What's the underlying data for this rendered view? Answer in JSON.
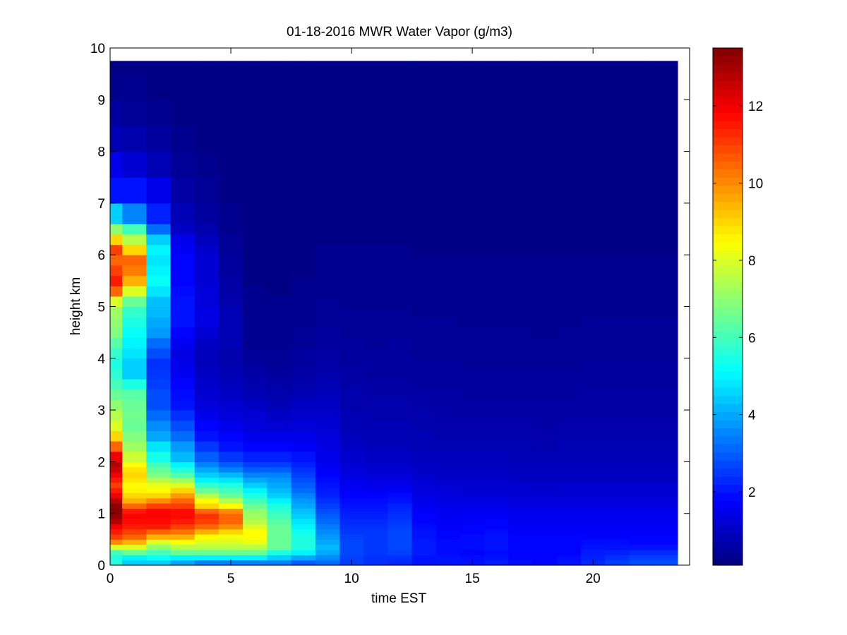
{
  "chart_data": {
    "type": "heatmap",
    "title": "01-18-2016 MWR Water Vapor (g/m3)",
    "xlabel": "time EST",
    "ylabel": "height km",
    "xlim": [
      0,
      24
    ],
    "ylim": [
      0,
      10
    ],
    "x_ticks": [
      0,
      5,
      10,
      15,
      20
    ],
    "y_ticks": [
      0,
      1,
      2,
      3,
      4,
      5,
      6,
      7,
      8,
      9,
      10
    ],
    "colormap": "jet",
    "colorbar": {
      "range": [
        0.1,
        13.5
      ],
      "ticks": [
        2,
        4,
        6,
        8,
        10,
        12
      ]
    },
    "grid": false,
    "x_centers": [
      0,
      1,
      2,
      3,
      4,
      5,
      6,
      7,
      8,
      9,
      10,
      11,
      12,
      13,
      14,
      15,
      16,
      17,
      18,
      19,
      20,
      21,
      22,
      23
    ],
    "y_centers": [
      0.05,
      0.15,
      0.25,
      0.35,
      0.45,
      0.55,
      0.65,
      0.75,
      0.85,
      0.95,
      1.05,
      1.15,
      1.25,
      1.35,
      1.45,
      1.55,
      1.65,
      1.75,
      1.85,
      1.95,
      2.1,
      2.3,
      2.5,
      2.7,
      2.9,
      3.1,
      3.3,
      3.5,
      3.7,
      3.9,
      4.1,
      4.3,
      4.5,
      4.7,
      4.9,
      5.1,
      5.3,
      5.5,
      5.7,
      5.9,
      6.1,
      6.3,
      6.5,
      6.75,
      7.25,
      7.75,
      8.25,
      8.75,
      9.25,
      9.75
    ],
    "y_edges": [
      0,
      0.1,
      0.2,
      0.3,
      0.4,
      0.5,
      0.6,
      0.7,
      0.8,
      0.9,
      1.0,
      1.1,
      1.2,
      1.3,
      1.4,
      1.5,
      1.6,
      1.7,
      1.8,
      1.9,
      2.0,
      2.2,
      2.4,
      2.6,
      2.8,
      3.0,
      3.2,
      3.4,
      3.6,
      3.8,
      4.0,
      4.2,
      4.4,
      4.6,
      4.8,
      5.0,
      5.2,
      5.4,
      5.6,
      5.8,
      6.0,
      6.2,
      6.4,
      6.6,
      7.0,
      7.5,
      8.0,
      8.5,
      9.0,
      9.5,
      9.75
    ],
    "z_by_time": [
      [
        5.6,
        5.5,
        6.0,
        8.0,
        10.0,
        11.0,
        11.5,
        12.0,
        12.8,
        13.2,
        13.4,
        13.3,
        12.8,
        12.0,
        11.5,
        11.0,
        11.5,
        12.0,
        12.5,
        12.8,
        12.0,
        10.5,
        9.0,
        8.0,
        7.5,
        7.0,
        6.5,
        6.0,
        5.7,
        5.5,
        5.8,
        6.3,
        6.8,
        7.0,
        7.2,
        8.0,
        10.5,
        11.5,
        11.0,
        10.5,
        11.0,
        9.0,
        7.0,
        4.5,
        2.0,
        1.5,
        0.8,
        0.5,
        0.3,
        0.2
      ],
      [
        4.5,
        5.0,
        6.5,
        8.0,
        9.5,
        10.5,
        11.0,
        11.5,
        11.7,
        11.8,
        11.5,
        10.5,
        9.5,
        9.0,
        8.6,
        8.5,
        8.8,
        9.0,
        8.8,
        8.4,
        7.8,
        7.2,
        6.8,
        6.5,
        6.6,
        6.5,
        6.3,
        5.5,
        4.5,
        4.5,
        4.8,
        5.0,
        5.2,
        5.5,
        5.8,
        6.5,
        8.0,
        9.5,
        10.2,
        10.5,
        9.0,
        7.5,
        6.0,
        3.5,
        2.0,
        1.2,
        0.7,
        0.4,
        0.3,
        0.2
      ],
      [
        4.5,
        5.2,
        6.0,
        7.0,
        8.0,
        9.5,
        10.5,
        11.5,
        11.7,
        11.8,
        11.8,
        11.0,
        10.0,
        9.0,
        8.5,
        8.2,
        7.5,
        6.8,
        6.4,
        6.0,
        5.4,
        4.8,
        4.0,
        3.6,
        3.2,
        2.8,
        2.8,
        2.6,
        2.5,
        2.4,
        2.8,
        3.2,
        3.8,
        4.0,
        4.2,
        4.3,
        4.8,
        5.2,
        5.0,
        4.8,
        5.0,
        4.5,
        3.2,
        2.2,
        1.5,
        0.8,
        0.5,
        0.3,
        0.2,
        0.2
      ],
      [
        4.0,
        5.0,
        6.5,
        7.5,
        8.5,
        9.5,
        10.3,
        11.0,
        11.5,
        11.7,
        11.7,
        11.0,
        10.5,
        9.8,
        9.0,
        8.0,
        7.2,
        6.2,
        5.5,
        5.0,
        4.2,
        3.8,
        3.2,
        2.8,
        2.4,
        2.0,
        1.9,
        1.8,
        1.6,
        1.5,
        1.4,
        1.6,
        1.8,
        2.0,
        2.0,
        2.0,
        1.9,
        1.8,
        1.8,
        1.8,
        1.7,
        1.5,
        1.0,
        0.8,
        0.6,
        0.4,
        0.3,
        0.2,
        0.2,
        0.2
      ],
      [
        3.5,
        5.0,
        6.5,
        7.5,
        8.0,
        8.5,
        9.5,
        10.5,
        11.0,
        11.2,
        10.5,
        9.0,
        8.5,
        7.5,
        6.5,
        5.8,
        5.0,
        4.5,
        4.0,
        3.5,
        3.0,
        2.5,
        2.0,
        1.8,
        1.5,
        1.3,
        1.2,
        1.1,
        1.0,
        0.9,
        0.9,
        1.0,
        1.2,
        1.4,
        1.4,
        1.3,
        1.3,
        1.2,
        1.2,
        1.2,
        1.1,
        0.9,
        0.7,
        0.5,
        0.4,
        0.3,
        0.2,
        0.2,
        0.2,
        0.2
      ],
      [
        3.5,
        5.0,
        6.5,
        7.5,
        8.0,
        8.3,
        9.0,
        10.0,
        10.5,
        10.5,
        10.0,
        8.5,
        7.5,
        6.5,
        6.0,
        5.5,
        4.8,
        4.2,
        3.5,
        3.0,
        2.5,
        2.0,
        1.8,
        1.5,
        1.3,
        1.2,
        1.0,
        0.9,
        0.8,
        0.7,
        0.7,
        0.8,
        0.8,
        0.8,
        0.8,
        0.7,
        0.6,
        0.6,
        0.5,
        0.5,
        0.4,
        0.4,
        0.3,
        0.3,
        0.2,
        0.2,
        0.2,
        0.2,
        0.2,
        0.2
      ],
      [
        3.5,
        5.0,
        6.5,
        7.5,
        8.2,
        8.5,
        8.5,
        8.0,
        7.5,
        7.2,
        7.0,
        6.5,
        6.0,
        5.5,
        5.0,
        4.5,
        4.0,
        3.5,
        3.0,
        2.6,
        2.2,
        1.8,
        1.5,
        1.3,
        1.2,
        1.0,
        0.8,
        0.7,
        0.6,
        0.5,
        0.4,
        0.3,
        0.3,
        0.3,
        0.3,
        0.3,
        0.3,
        0.2,
        0.2,
        0.2,
        0.2,
        0.2,
        0.2,
        0.2,
        0.2,
        0.2,
        0.2,
        0.2,
        0.2,
        0.2
      ],
      [
        3.5,
        4.5,
        5.5,
        6.5,
        6.5,
        6.5,
        6.5,
        6.5,
        6.3,
        6.0,
        5.8,
        5.5,
        5.0,
        4.5,
        4.2,
        4.0,
        3.8,
        3.5,
        3.0,
        2.6,
        2.2,
        1.8,
        1.5,
        1.2,
        1.0,
        0.8,
        0.7,
        0.6,
        0.5,
        0.4,
        0.4,
        0.3,
        0.3,
        0.3,
        0.3,
        0.3,
        0.2,
        0.2,
        0.2,
        0.2,
        0.2,
        0.2,
        0.2,
        0.2,
        0.2,
        0.2,
        0.2,
        0.2,
        0.2,
        0.2
      ],
      [
        3.0,
        4.0,
        5.0,
        5.5,
        5.5,
        5.5,
        5.3,
        5.0,
        4.8,
        4.5,
        4.3,
        4.0,
        3.8,
        3.5,
        3.2,
        3.0,
        2.8,
        2.6,
        2.4,
        2.2,
        2.0,
        1.7,
        1.5,
        1.3,
        1.1,
        1.0,
        0.8,
        0.7,
        0.6,
        0.5,
        0.5,
        0.4,
        0.4,
        0.3,
        0.3,
        0.3,
        0.3,
        0.3,
        0.2,
        0.2,
        0.2,
        0.2,
        0.2,
        0.2,
        0.2,
        0.2,
        0.2,
        0.2,
        0.2,
        0.2
      ],
      [
        3.2,
        3.6,
        4.0,
        4.2,
        4.0,
        3.8,
        3.6,
        3.4,
        3.2,
        3.0,
        2.8,
        2.6,
        2.4,
        2.2,
        2.1,
        2.0,
        1.9,
        1.8,
        1.7,
        1.6,
        1.5,
        1.4,
        1.3,
        1.2,
        1.1,
        1.0,
        0.9,
        0.8,
        0.7,
        0.6,
        0.6,
        0.5,
        0.5,
        0.4,
        0.4,
        0.4,
        0.3,
        0.3,
        0.3,
        0.3,
        0.3,
        0.2,
        0.2,
        0.2,
        0.2,
        0.2,
        0.2,
        0.2,
        0.2,
        0.2
      ],
      [
        2.6,
        2.6,
        2.7,
        2.7,
        2.7,
        2.6,
        2.5,
        2.4,
        2.3,
        2.2,
        2.1,
        2.0,
        1.9,
        1.8,
        1.7,
        1.6,
        1.5,
        1.4,
        1.3,
        1.2,
        1.1,
        1.0,
        0.9,
        0.8,
        0.8,
        0.7,
        0.7,
        0.6,
        0.6,
        0.5,
        0.5,
        0.5,
        0.4,
        0.4,
        0.4,
        0.3,
        0.3,
        0.3,
        0.3,
        0.3,
        0.3,
        0.2,
        0.2,
        0.2,
        0.2,
        0.2,
        0.2,
        0.2,
        0.2,
        0.2
      ],
      [
        2.4,
        2.4,
        2.5,
        2.5,
        2.5,
        2.5,
        2.5,
        2.4,
        2.3,
        2.2,
        2.1,
        2.0,
        1.9,
        1.8,
        1.6,
        1.5,
        1.4,
        1.3,
        1.2,
        1.1,
        1.0,
        0.9,
        0.8,
        0.8,
        0.7,
        0.7,
        0.6,
        0.6,
        0.5,
        0.5,
        0.5,
        0.4,
        0.4,
        0.4,
        0.4,
        0.3,
        0.3,
        0.3,
        0.3,
        0.3,
        0.3,
        0.2,
        0.2,
        0.2,
        0.2,
        0.2,
        0.2,
        0.2,
        0.2,
        0.2
      ],
      [
        2.3,
        2.4,
        2.6,
        2.7,
        2.7,
        2.7,
        2.7,
        2.6,
        2.5,
        2.4,
        2.3,
        2.2,
        2.0,
        1.9,
        1.7,
        1.5,
        1.4,
        1.3,
        1.2,
        1.1,
        1.0,
        0.9,
        0.8,
        0.8,
        0.7,
        0.7,
        0.6,
        0.6,
        0.5,
        0.5,
        0.5,
        0.5,
        0.4,
        0.4,
        0.4,
        0.3,
        0.3,
        0.3,
        0.3,
        0.3,
        0.3,
        0.2,
        0.2,
        0.2,
        0.2,
        0.2,
        0.2,
        0.2,
        0.2,
        0.2
      ],
      [
        2.0,
        2.0,
        2.1,
        2.1,
        2.1,
        2.0,
        2.0,
        1.9,
        1.8,
        1.8,
        1.7,
        1.6,
        1.5,
        1.4,
        1.3,
        1.3,
        1.2,
        1.1,
        1.0,
        1.0,
        0.9,
        0.8,
        0.8,
        0.7,
        0.7,
        0.6,
        0.6,
        0.5,
        0.5,
        0.5,
        0.4,
        0.4,
        0.4,
        0.4,
        0.3,
        0.3,
        0.3,
        0.3,
        0.3,
        0.3,
        0.2,
        0.2,
        0.2,
        0.2,
        0.2,
        0.2,
        0.2,
        0.2,
        0.2,
        0.2
      ],
      [
        2.0,
        2.0,
        1.9,
        1.9,
        1.9,
        1.8,
        1.8,
        1.7,
        1.7,
        1.6,
        1.6,
        1.5,
        1.4,
        1.3,
        1.3,
        1.2,
        1.1,
        1.0,
        1.0,
        0.9,
        0.9,
        0.8,
        0.7,
        0.7,
        0.6,
        0.6,
        0.6,
        0.5,
        0.5,
        0.5,
        0.4,
        0.4,
        0.4,
        0.4,
        0.3,
        0.3,
        0.3,
        0.3,
        0.3,
        0.3,
        0.2,
        0.2,
        0.2,
        0.2,
        0.2,
        0.2,
        0.2,
        0.2,
        0.2,
        0.2
      ],
      [
        2.0,
        1.9,
        1.8,
        1.9,
        1.9,
        1.9,
        1.8,
        1.8,
        1.7,
        1.7,
        1.6,
        1.5,
        1.4,
        1.3,
        1.2,
        1.2,
        1.1,
        1.0,
        1.0,
        0.9,
        0.9,
        0.8,
        0.7,
        0.7,
        0.6,
        0.6,
        0.5,
        0.5,
        0.5,
        0.4,
        0.4,
        0.4,
        0.4,
        0.3,
        0.3,
        0.3,
        0.3,
        0.3,
        0.3,
        0.3,
        0.2,
        0.2,
        0.2,
        0.2,
        0.2,
        0.2,
        0.2,
        0.2,
        0.2,
        0.2
      ],
      [
        2.1,
        2.0,
        1.9,
        2.0,
        2.0,
        2.0,
        1.9,
        1.8,
        1.8,
        1.7,
        1.6,
        1.5,
        1.4,
        1.3,
        1.2,
        1.2,
        1.1,
        1.0,
        1.0,
        0.9,
        0.9,
        0.8,
        0.7,
        0.7,
        0.6,
        0.6,
        0.5,
        0.5,
        0.5,
        0.4,
        0.4,
        0.4,
        0.4,
        0.3,
        0.3,
        0.3,
        0.3,
        0.3,
        0.3,
        0.3,
        0.2,
        0.2,
        0.2,
        0.2,
        0.2,
        0.2,
        0.2,
        0.2,
        0.2,
        0.2
      ],
      [
        1.9,
        1.8,
        1.8,
        1.8,
        1.8,
        1.8,
        1.7,
        1.7,
        1.6,
        1.6,
        1.5,
        1.4,
        1.3,
        1.2,
        1.2,
        1.1,
        1.0,
        1.0,
        0.9,
        0.9,
        0.8,
        0.8,
        0.7,
        0.7,
        0.6,
        0.6,
        0.5,
        0.5,
        0.5,
        0.4,
        0.4,
        0.4,
        0.4,
        0.3,
        0.3,
        0.3,
        0.3,
        0.3,
        0.3,
        0.3,
        0.2,
        0.2,
        0.2,
        0.2,
        0.2,
        0.2,
        0.2,
        0.2,
        0.2,
        0.2
      ],
      [
        1.8,
        1.8,
        1.8,
        1.8,
        1.8,
        1.8,
        1.7,
        1.7,
        1.6,
        1.6,
        1.5,
        1.4,
        1.3,
        1.2,
        1.1,
        1.1,
        1.0,
        1.0,
        0.9,
        0.9,
        0.8,
        0.7,
        0.7,
        0.6,
        0.6,
        0.6,
        0.5,
        0.5,
        0.5,
        0.4,
        0.4,
        0.4,
        0.3,
        0.3,
        0.3,
        0.3,
        0.3,
        0.3,
        0.3,
        0.3,
        0.2,
        0.2,
        0.2,
        0.2,
        0.2,
        0.2,
        0.2,
        0.2,
        0.2,
        0.2
      ],
      [
        2.0,
        1.9,
        1.8,
        1.8,
        1.8,
        1.8,
        1.7,
        1.7,
        1.6,
        1.6,
        1.5,
        1.4,
        1.3,
        1.2,
        1.2,
        1.1,
        1.0,
        1.0,
        0.9,
        0.9,
        0.8,
        0.8,
        0.7,
        0.7,
        0.6,
        0.6,
        0.5,
        0.5,
        0.5,
        0.4,
        0.4,
        0.4,
        0.4,
        0.3,
        0.3,
        0.3,
        0.3,
        0.3,
        0.3,
        0.3,
        0.2,
        0.2,
        0.2,
        0.2,
        0.2,
        0.2,
        0.2,
        0.2,
        0.2,
        0.2
      ],
      [
        2.3,
        2.2,
        2.1,
        2.0,
        1.9,
        1.8,
        1.7,
        1.7,
        1.6,
        1.6,
        1.5,
        1.4,
        1.3,
        1.2,
        1.2,
        1.1,
        1.0,
        1.0,
        0.9,
        0.9,
        0.8,
        0.8,
        0.7,
        0.7,
        0.6,
        0.6,
        0.6,
        0.5,
        0.5,
        0.5,
        0.4,
        0.4,
        0.4,
        0.4,
        0.3,
        0.3,
        0.3,
        0.3,
        0.3,
        0.3,
        0.2,
        0.2,
        0.2,
        0.2,
        0.2,
        0.2,
        0.2,
        0.2,
        0.2,
        0.2
      ],
      [
        2.6,
        2.4,
        2.2,
        2.0,
        1.9,
        1.8,
        1.7,
        1.7,
        1.6,
        1.6,
        1.5,
        1.4,
        1.3,
        1.2,
        1.2,
        1.1,
        1.0,
        1.0,
        0.9,
        0.9,
        0.8,
        0.8,
        0.7,
        0.7,
        0.6,
        0.6,
        0.6,
        0.5,
        0.5,
        0.5,
        0.4,
        0.4,
        0.4,
        0.4,
        0.3,
        0.3,
        0.3,
        0.3,
        0.3,
        0.3,
        0.2,
        0.2,
        0.2,
        0.2,
        0.2,
        0.2,
        0.2,
        0.2,
        0.2,
        0.2
      ],
      [
        2.8,
        2.6,
        2.3,
        2.0,
        1.8,
        1.8,
        1.7,
        1.7,
        1.6,
        1.6,
        1.5,
        1.4,
        1.3,
        1.2,
        1.2,
        1.1,
        1.0,
        1.0,
        0.9,
        0.9,
        0.8,
        0.8,
        0.7,
        0.7,
        0.6,
        0.6,
        0.6,
        0.5,
        0.5,
        0.5,
        0.4,
        0.4,
        0.4,
        0.4,
        0.3,
        0.3,
        0.3,
        0.3,
        0.3,
        0.3,
        0.2,
        0.2,
        0.2,
        0.2,
        0.2,
        0.2,
        0.2,
        0.2,
        0.2,
        0.2
      ],
      [
        2.8,
        2.6,
        2.3,
        2.0,
        1.8,
        1.8,
        1.7,
        1.7,
        1.6,
        1.6,
        1.5,
        1.4,
        1.3,
        1.2,
        1.2,
        1.1,
        1.0,
        1.0,
        0.9,
        0.9,
        0.8,
        0.8,
        0.7,
        0.7,
        0.6,
        0.6,
        0.6,
        0.5,
        0.5,
        0.5,
        0.4,
        0.4,
        0.4,
        0.4,
        0.3,
        0.3,
        0.3,
        0.3,
        0.3,
        0.3,
        0.2,
        0.2,
        0.2,
        0.2,
        0.2,
        0.2,
        0.2,
        0.2,
        0.2,
        0.2
      ]
    ]
  }
}
